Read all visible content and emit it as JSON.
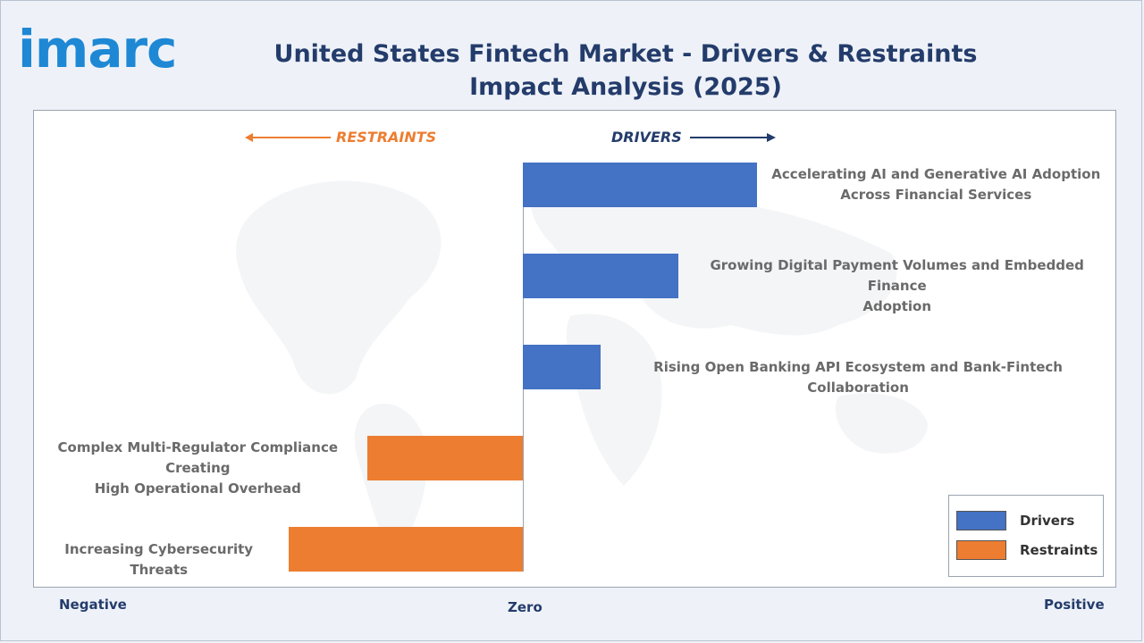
{
  "brand": {
    "logo_text": "imarc"
  },
  "title": "United States Fintech Market - Drivers & Restraints Impact Analysis (2025)",
  "direction_labels": {
    "restraints": "RESTRAINTS",
    "drivers": "DRIVERS"
  },
  "scale_labels": {
    "negative": "Negative",
    "zero": "Zero",
    "positive": "Positive"
  },
  "colors": {
    "drivers": "#4472c4",
    "restraints": "#ed7d31",
    "title": "#243c6b"
  },
  "chart_data": {
    "type": "bar",
    "orientation": "horizontal",
    "xlim": [
      -1,
      1
    ],
    "legend": {
      "placement": "bottom-right",
      "entries": [
        "Drivers",
        "Restraints"
      ]
    },
    "categories": [
      "Accelerating AI and Generative AI Adoption Across Financial Services",
      "Growing Digital Payment Volumes and Embedded Finance Adoption",
      "Rising Open Banking API Ecosystem and Bank-Fintech Collaboration",
      "Complex Multi-Regulator Compliance Creating High Operational Overhead",
      "Increasing Cybersecurity Threats"
    ],
    "label_lines": [
      [
        "Accelerating AI and Generative AI Adoption",
        "Across Financial Services"
      ],
      [
        "Growing Digital Payment Volumes and Embedded Finance",
        "Adoption"
      ],
      [
        "Rising Open Banking API Ecosystem and Bank-Fintech Collaboration"
      ],
      [
        "Complex Multi-Regulator Compliance Creating",
        "High Operational Overhead"
      ],
      [
        "Increasing Cybersecurity Threats"
      ]
    ],
    "series": [
      {
        "name": "Drivers",
        "values": [
          0.48,
          0.32,
          0.16,
          null,
          null
        ]
      },
      {
        "name": "Restraints",
        "values": [
          null,
          null,
          null,
          -0.32,
          -0.48
        ]
      }
    ]
  }
}
